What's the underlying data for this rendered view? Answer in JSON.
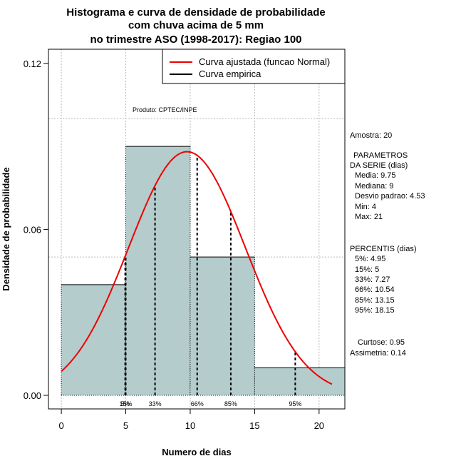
{
  "chart_data": {
    "type": "bar",
    "title_lines": [
      "Histograma e curva de densidade de probabilidade",
      "com chuva acima de 5 mm",
      "no trimestre ASO (1998-2017): Regiao 100"
    ],
    "xlabel": "Numero de dias",
    "ylabel": "Densidade de probabilidade",
    "xlim": [
      -1,
      22
    ],
    "ylim": [
      0,
      0.13
    ],
    "x_ticks": [
      0,
      5,
      10,
      15,
      20
    ],
    "y_ticks": [
      0.0,
      0.06,
      0.12
    ],
    "y_tick_labels": [
      "0.00",
      "0.06",
      "0.12"
    ],
    "histogram": {
      "bins": [
        {
          "x0": 0,
          "x1": 5,
          "density": 0.04
        },
        {
          "x0": 5,
          "x1": 10,
          "density": 0.09
        },
        {
          "x0": 10,
          "x1": 15,
          "density": 0.05
        },
        {
          "x0": 15,
          "x1": 22,
          "density": 0.01
        }
      ],
      "fill": "#b4cccc"
    },
    "normal_curve": {
      "mean": 9.75,
      "sd": 4.53,
      "x_from": 0,
      "x_to": 21,
      "color": "#ee0000"
    },
    "percentile_lines": [
      {
        "x": 4.95,
        "label": "5%"
      },
      {
        "x": 5,
        "label": "15%"
      },
      {
        "x": 7.27,
        "label": "33%"
      },
      {
        "x": 10.54,
        "label": "66%"
      },
      {
        "x": 13.15,
        "label": "85%"
      },
      {
        "x": 18.15,
        "label": "95%"
      }
    ],
    "h_gridlines": [
      0.05,
      0.1
    ],
    "legend": {
      "position": "top-right",
      "entries": [
        {
          "label": "Curva ajustada (funcao Normal)",
          "color": "#ee0000"
        },
        {
          "label": "Curva empirica",
          "color": "#000000"
        }
      ]
    },
    "produto": "Produto: CPTEC/INPE",
    "stats": {
      "amostra": "Amostra: 20",
      "param_title_1": "PARAMETROS",
      "param_title_2": "DA SERIE (dias)",
      "media": "Media: 9.75",
      "mediana": "Mediana: 9",
      "desvio": "Desvio padrao: 4.53",
      "min": "Min: 4",
      "max": "Max: 21",
      "pct_title": "PERCENTIS (dias)",
      "p5": "5%: 4.95",
      "p15": "15%: 5",
      "p33": "33%: 7.27",
      "p66": "66%: 10.54",
      "p85": "85%: 13.15",
      "p95": "95%: 18.15",
      "curtose": "Curtose: 0.95",
      "assimetria": "Assimetria: 0.14"
    }
  }
}
